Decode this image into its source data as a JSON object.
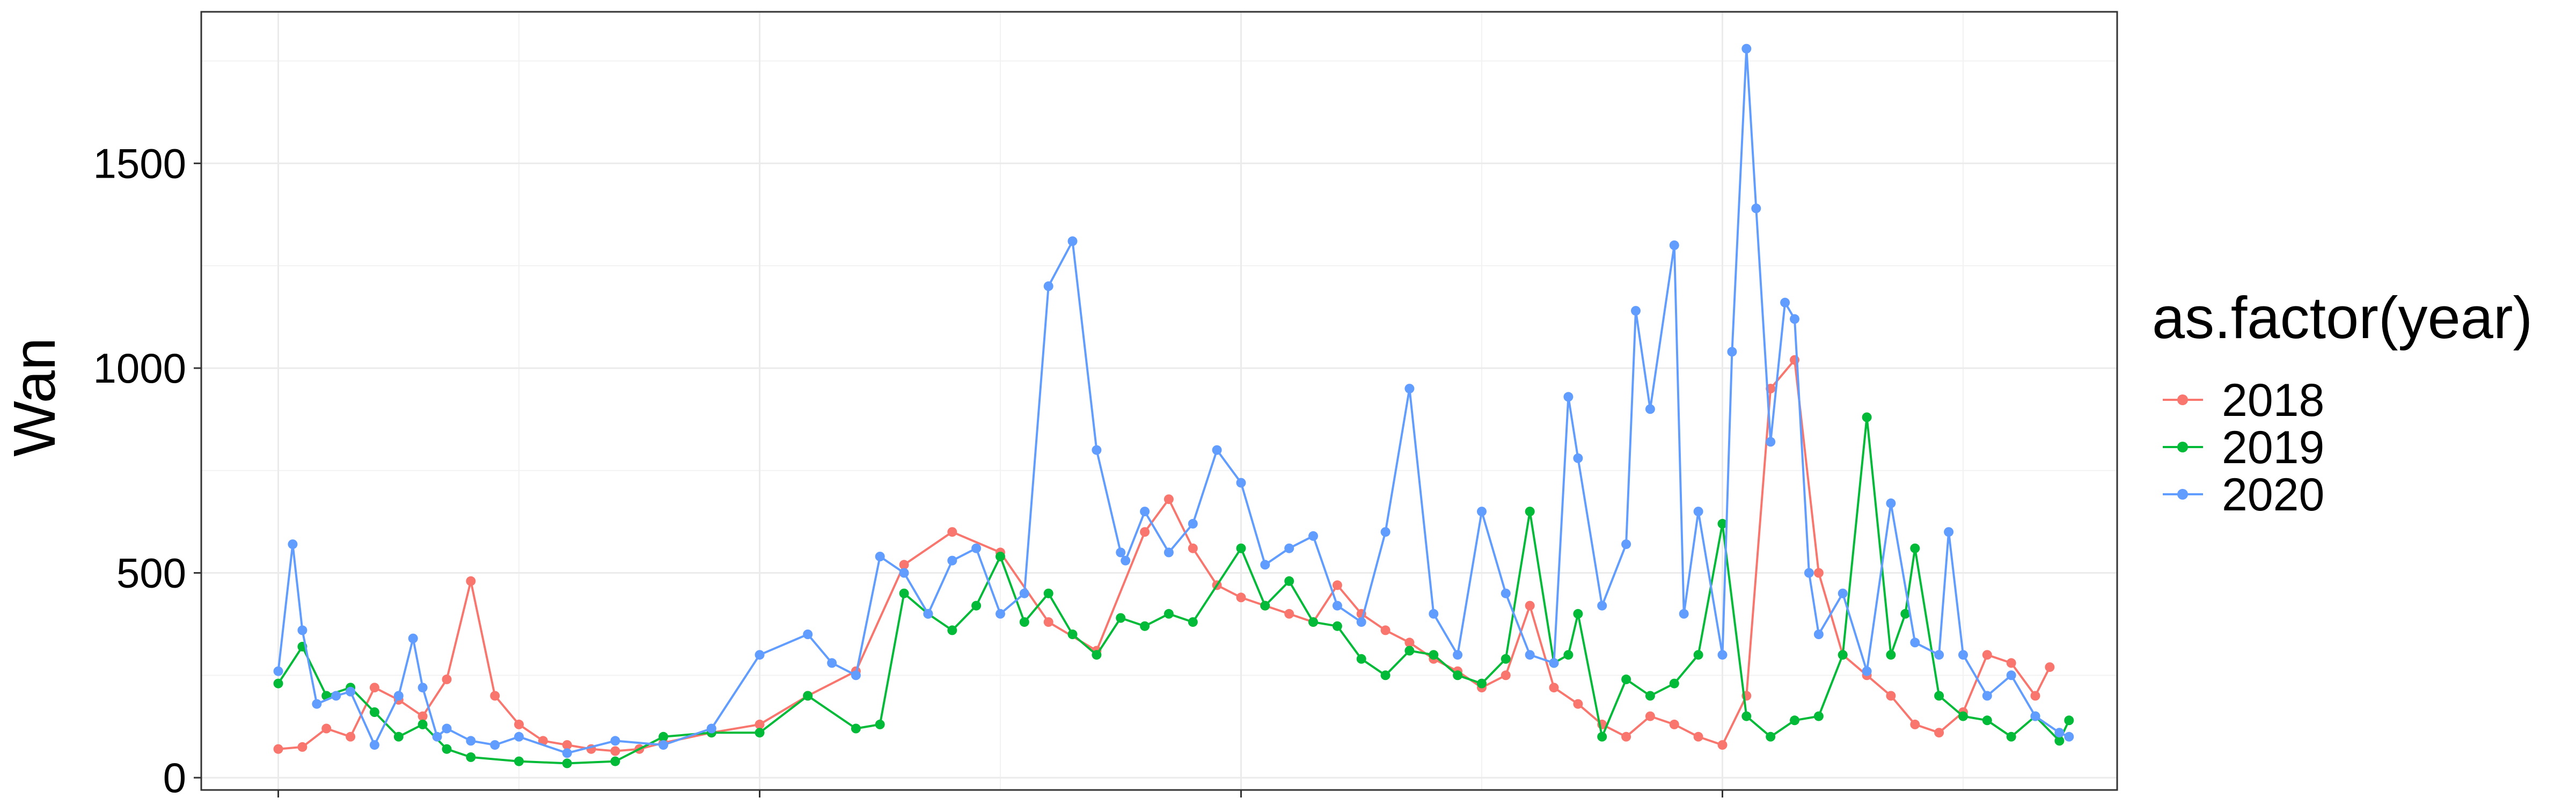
{
  "chart_data": {
    "type": "line",
    "title": "",
    "xlabel": "",
    "ylabel": "Wan",
    "ylim": [
      -30,
      1870
    ],
    "xlim": [
      -16,
      382
    ],
    "yticks": [
      0,
      500,
      1000,
      1500
    ],
    "y_tick_labels": [
      "0",
      "500",
      "1000",
      "1500"
    ],
    "x_ticks_unlabeled": [
      0,
      100,
      200,
      300
    ],
    "grid": true,
    "legend": {
      "title": "as.factor(year)",
      "position": "right",
      "entries": [
        "2018",
        "2019",
        "2020"
      ]
    },
    "series": [
      {
        "name": "2018",
        "color": "#F8766D",
        "x": [
          0,
          5,
          10,
          15,
          20,
          25,
          30,
          35,
          40,
          45,
          50,
          55,
          60,
          65,
          70,
          75,
          80,
          90,
          100,
          110,
          120,
          130,
          140,
          150,
          160,
          170,
          180,
          185,
          190,
          195,
          200,
          205,
          210,
          215,
          220,
          225,
          230,
          235,
          240,
          245,
          250,
          255,
          260,
          265,
          270,
          275,
          280,
          285,
          290,
          295,
          300,
          305,
          310,
          315,
          320,
          325,
          330,
          335,
          340,
          345,
          350,
          355,
          360,
          365,
          368
        ],
        "values": [
          70,
          75,
          120,
          100,
          220,
          190,
          150,
          240,
          480,
          200,
          130,
          90,
          80,
          70,
          65,
          70,
          85,
          110,
          130,
          200,
          260,
          520,
          600,
          550,
          380,
          310,
          600,
          680,
          560,
          470,
          440,
          420,
          400,
          380,
          470,
          400,
          360,
          330,
          290,
          260,
          220,
          250,
          420,
          220,
          180,
          130,
          100,
          150,
          130,
          100,
          80,
          200,
          950,
          1020,
          500,
          300,
          250,
          200,
          130,
          110,
          160,
          300,
          280,
          200,
          270
        ]
      },
      {
        "name": "2019",
        "color": "#00BA38",
        "x": [
          0,
          5,
          10,
          15,
          20,
          25,
          30,
          35,
          40,
          50,
          60,
          70,
          80,
          90,
          100,
          110,
          120,
          125,
          130,
          135,
          140,
          145,
          150,
          155,
          160,
          165,
          170,
          175,
          180,
          185,
          190,
          200,
          205,
          210,
          215,
          220,
          225,
          230,
          235,
          240,
          245,
          250,
          255,
          260,
          265,
          268,
          270,
          275,
          280,
          285,
          290,
          295,
          300,
          305,
          310,
          315,
          320,
          325,
          330,
          335,
          338,
          340,
          345,
          350,
          355,
          360,
          365,
          370,
          372
        ],
        "values": [
          230,
          320,
          200,
          220,
          160,
          100,
          130,
          70,
          50,
          40,
          35,
          40,
          100,
          110,
          110,
          200,
          120,
          130,
          450,
          400,
          360,
          420,
          540,
          380,
          450,
          350,
          300,
          390,
          370,
          400,
          380,
          560,
          420,
          480,
          380,
          370,
          290,
          250,
          310,
          300,
          250,
          230,
          290,
          650,
          280,
          300,
          400,
          100,
          240,
          200,
          230,
          300,
          620,
          150,
          100,
          140,
          150,
          300,
          880,
          300,
          400,
          560,
          200,
          150,
          140,
          100,
          150,
          90,
          140
        ]
      },
      {
        "name": "2020",
        "color": "#619CFF",
        "x": [
          0,
          3,
          5,
          8,
          12,
          15,
          20,
          25,
          28,
          30,
          33,
          35,
          40,
          45,
          50,
          60,
          70,
          80,
          90,
          100,
          110,
          115,
          120,
          125,
          130,
          135,
          140,
          145,
          150,
          155,
          160,
          165,
          170,
          175,
          176,
          180,
          185,
          190,
          195,
          200,
          205,
          210,
          215,
          220,
          225,
          230,
          235,
          240,
          245,
          250,
          255,
          260,
          265,
          268,
          270,
          275,
          280,
          282,
          285,
          290,
          292,
          295,
          300,
          302,
          305,
          307,
          310,
          313,
          315,
          318,
          320,
          325,
          330,
          335,
          340,
          345,
          347,
          350,
          355,
          360,
          365,
          370,
          372
        ],
        "values": [
          260,
          570,
          360,
          180,
          200,
          210,
          80,
          200,
          340,
          220,
          100,
          120,
          90,
          80,
          100,
          60,
          90,
          80,
          120,
          300,
          350,
          280,
          250,
          540,
          500,
          400,
          530,
          560,
          400,
          450,
          1200,
          1310,
          800,
          550,
          530,
          650,
          550,
          620,
          800,
          720,
          520,
          560,
          590,
          420,
          380,
          600,
          950,
          400,
          300,
          650,
          450,
          300,
          280,
          930,
          780,
          420,
          570,
          1140,
          900,
          1300,
          400,
          650,
          300,
          1040,
          1780,
          1390,
          820,
          1160,
          1120,
          500,
          350,
          450,
          260,
          670,
          330,
          300,
          600,
          300,
          200,
          250,
          150,
          110,
          100
        ]
      }
    ]
  }
}
